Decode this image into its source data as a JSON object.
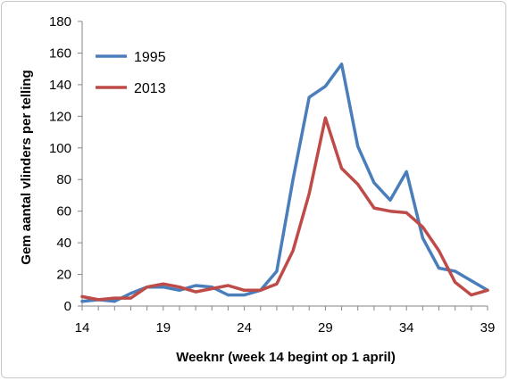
{
  "chart_data": {
    "type": "line",
    "title": "",
    "xlabel": "Weeknr (week 14 begint op 1 april)",
    "ylabel": "Gem aantal vlinders per telling",
    "xlim": [
      14,
      39
    ],
    "ylim": [
      0,
      180
    ],
    "xticks": [
      14,
      19,
      24,
      29,
      34,
      39
    ],
    "yticks": [
      0,
      20,
      40,
      60,
      80,
      100,
      120,
      140,
      160,
      180
    ],
    "grid": false,
    "legend_position": "top-left",
    "x": [
      14,
      15,
      16,
      17,
      18,
      19,
      20,
      21,
      22,
      23,
      24,
      25,
      26,
      27,
      28,
      29,
      30,
      31,
      32,
      33,
      34,
      35,
      36,
      37,
      38,
      39
    ],
    "series": [
      {
        "name": "1995",
        "color": "#4a7ebb",
        "values": [
          3,
          4,
          3,
          8,
          12,
          12,
          10,
          13,
          12,
          7,
          7,
          10,
          22,
          80,
          132,
          139,
          153,
          101,
          78,
          67,
          85,
          43,
          24,
          22,
          16,
          10
        ]
      },
      {
        "name": "2013",
        "color": "#be4b48",
        "values": [
          6,
          4,
          5,
          5,
          12,
          14,
          12,
          9,
          11,
          13,
          10,
          10,
          14,
          35,
          71,
          119,
          87,
          77,
          62,
          60,
          59,
          50,
          35,
          15,
          7,
          10
        ]
      }
    ]
  }
}
